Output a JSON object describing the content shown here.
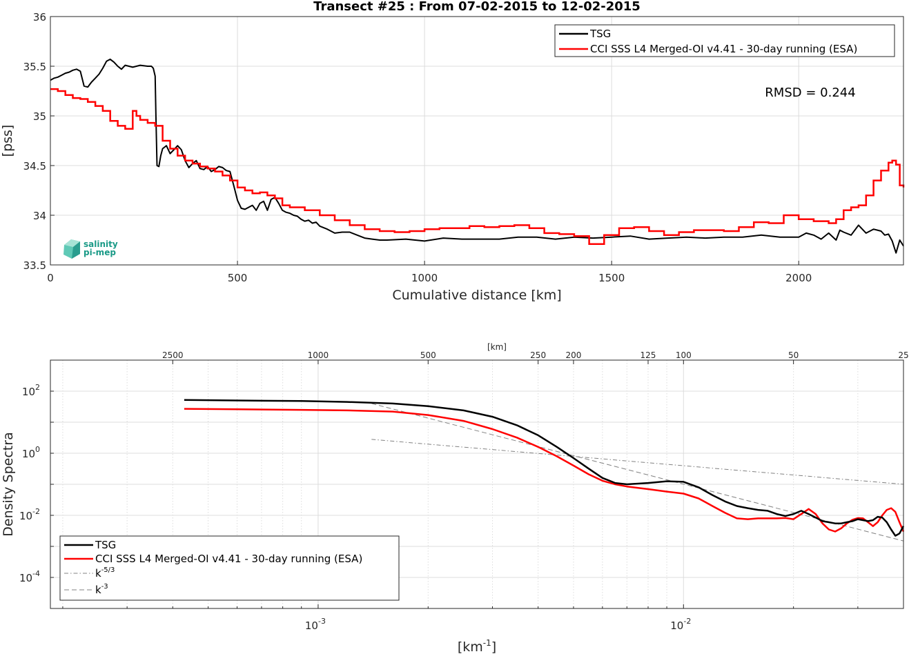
{
  "colors": {
    "tsg": "#000000",
    "cci": "#ff0000",
    "ref_k53": "#808080",
    "ref_k3": "#808080",
    "grid": "#dcdcdc",
    "logo": "#1a9a87"
  },
  "logo": {
    "line1": "salinity",
    "line2": "pi-mep"
  },
  "chart_data": [
    {
      "type": "line",
      "title": "Transect #25 : From 07-02-2015 to 12-02-2015",
      "xlabel": "Cumulative distance [km]",
      "ylabel": "[pss]",
      "xlim": [
        0,
        2280
      ],
      "ylim": [
        33.5,
        36
      ],
      "xticks": [
        0,
        500,
        1000,
        1500,
        2000
      ],
      "yticks": [
        33.5,
        34,
        34.5,
        35,
        35.5,
        36
      ],
      "grid": true,
      "legend_position": "top-right",
      "annotation": "RMSD = 0.244",
      "series": [
        {
          "name": "TSG",
          "x": [
            0,
            10,
            20,
            30,
            40,
            50,
            60,
            70,
            80,
            90,
            100,
            110,
            120,
            130,
            140,
            150,
            160,
            170,
            180,
            190,
            200,
            220,
            240,
            260,
            270,
            275,
            280,
            282,
            285,
            290,
            295,
            300,
            310,
            320,
            330,
            340,
            350,
            360,
            370,
            380,
            390,
            400,
            410,
            420,
            430,
            440,
            450,
            460,
            470,
            480,
            490,
            500,
            510,
            520,
            530,
            540,
            550,
            560,
            570,
            580,
            590,
            600,
            610,
            620,
            630,
            640,
            650,
            660,
            670,
            680,
            690,
            700,
            710,
            720,
            740,
            760,
            780,
            800,
            820,
            840,
            860,
            880,
            900,
            950,
            1000,
            1050,
            1100,
            1150,
            1200,
            1250,
            1300,
            1350,
            1400,
            1450,
            1500,
            1550,
            1600,
            1650,
            1700,
            1750,
            1800,
            1850,
            1900,
            1950,
            2000,
            2020,
            2040,
            2060,
            2080,
            2100,
            2110,
            2120,
            2140,
            2160,
            2180,
            2200,
            2220,
            2230,
            2240,
            2250,
            2260,
            2270,
            2280
          ],
          "y": [
            35.36,
            35.38,
            35.39,
            35.41,
            35.43,
            35.44,
            35.46,
            35.47,
            35.45,
            35.3,
            35.29,
            35.34,
            35.38,
            35.42,
            35.48,
            35.55,
            35.57,
            35.54,
            35.5,
            35.47,
            35.51,
            35.49,
            35.51,
            35.5,
            35.5,
            35.48,
            35.4,
            35.0,
            34.5,
            34.49,
            34.6,
            34.67,
            34.7,
            34.62,
            34.66,
            34.7,
            34.66,
            34.55,
            34.48,
            34.52,
            34.55,
            34.47,
            34.46,
            34.49,
            34.44,
            34.46,
            34.49,
            34.48,
            34.45,
            34.44,
            34.3,
            34.15,
            34.07,
            34.06,
            34.08,
            34.1,
            34.05,
            34.12,
            34.14,
            34.05,
            34.16,
            34.18,
            34.12,
            34.05,
            34.03,
            34.02,
            34.0,
            33.99,
            33.96,
            33.94,
            33.95,
            33.92,
            33.93,
            33.89,
            33.86,
            33.82,
            33.83,
            33.83,
            33.8,
            33.77,
            33.76,
            33.75,
            33.75,
            33.76,
            33.74,
            33.77,
            33.76,
            33.76,
            33.76,
            33.78,
            33.78,
            33.76,
            33.78,
            33.77,
            33.78,
            33.79,
            33.76,
            33.77,
            33.78,
            33.77,
            33.78,
            33.78,
            33.8,
            33.78,
            33.78,
            33.82,
            33.8,
            33.76,
            33.82,
            33.75,
            33.85,
            33.83,
            33.8,
            33.9,
            33.82,
            33.86,
            33.84,
            33.8,
            33.81,
            33.74,
            33.62,
            33.75,
            33.69
          ]
        },
        {
          "name": "CCI SSS L4 Merged-OI v4.41 - 30-day running (ESA)",
          "x": [
            0,
            20,
            40,
            60,
            80,
            100,
            120,
            140,
            160,
            180,
            200,
            220,
            230,
            240,
            260,
            280,
            300,
            320,
            340,
            360,
            380,
            400,
            420,
            440,
            460,
            480,
            500,
            520,
            540,
            560,
            580,
            600,
            620,
            640,
            680,
            720,
            760,
            800,
            840,
            880,
            920,
            960,
            1000,
            1040,
            1080,
            1120,
            1160,
            1200,
            1240,
            1280,
            1320,
            1360,
            1400,
            1440,
            1480,
            1520,
            1560,
            1600,
            1640,
            1680,
            1720,
            1760,
            1800,
            1840,
            1880,
            1920,
            1960,
            2000,
            2040,
            2080,
            2100,
            2120,
            2140,
            2160,
            2180,
            2200,
            2220,
            2240,
            2250,
            2260,
            2270,
            2280
          ],
          "y": [
            35.27,
            35.25,
            35.21,
            35.18,
            35.17,
            35.14,
            35.1,
            35.05,
            34.95,
            34.9,
            34.87,
            35.05,
            35.0,
            34.96,
            34.93,
            34.9,
            34.75,
            34.67,
            34.6,
            34.55,
            34.52,
            34.49,
            34.47,
            34.44,
            34.4,
            34.35,
            34.28,
            34.25,
            34.22,
            34.23,
            34.2,
            34.17,
            34.1,
            34.08,
            34.05,
            34.0,
            33.95,
            33.9,
            33.86,
            33.84,
            33.83,
            33.84,
            33.86,
            33.87,
            33.87,
            33.89,
            33.88,
            33.89,
            33.9,
            33.87,
            33.82,
            33.81,
            33.79,
            33.71,
            33.8,
            33.87,
            33.88,
            33.84,
            33.8,
            33.83,
            33.85,
            33.85,
            33.84,
            33.88,
            33.93,
            33.92,
            34.0,
            33.96,
            33.94,
            33.92,
            33.96,
            34.05,
            34.08,
            34.1,
            34.2,
            34.35,
            34.45,
            34.53,
            34.55,
            34.51,
            34.3,
            34.28
          ]
        }
      ]
    },
    {
      "type": "line",
      "xscale": "log",
      "yscale": "log",
      "xlabel": "[km-1]",
      "ylabel": "Density Spectra",
      "top_axis_label": "[km]",
      "xlim": [
        0.000185,
        0.04
      ],
      "ylim": [
        1e-05,
        1000
      ],
      "xticks": [
        0.001,
        0.01
      ],
      "xtick_labels": [
        {
          "base": "10",
          "exp": "-3"
        },
        {
          "base": "10",
          "exp": "-2"
        }
      ],
      "yticks": [
        0.0001,
        0.01,
        1,
        100
      ],
      "ytick_labels": [
        {
          "base": "10",
          "exp": "-4"
        },
        {
          "base": "10",
          "exp": "-2"
        },
        {
          "base": "10",
          "exp": "0"
        },
        {
          "base": "10",
          "exp": "2"
        }
      ],
      "top_ticks": [
        2500,
        1000,
        500,
        250,
        200,
        125,
        100,
        50,
        25
      ],
      "grid": true,
      "legend_position": "bottom-left",
      "series": [
        {
          "name": "TSG",
          "x": [
            0.00043,
            0.0006,
            0.0009,
            0.0012,
            0.0016,
            0.002,
            0.0025,
            0.003,
            0.0035,
            0.004,
            0.0045,
            0.005,
            0.0055,
            0.006,
            0.0065,
            0.007,
            0.008,
            0.009,
            0.01,
            0.011,
            0.012,
            0.013,
            0.014,
            0.015,
            0.016,
            0.017,
            0.018,
            0.019,
            0.02,
            0.021,
            0.022,
            0.023,
            0.024,
            0.025,
            0.026,
            0.027,
            0.028,
            0.029,
            0.03,
            0.031,
            0.032,
            0.033,
            0.034,
            0.035,
            0.036,
            0.037,
            0.038,
            0.039,
            0.04
          ],
          "y": [
            52,
            50,
            48,
            45,
            40,
            33,
            24,
            15,
            8.0,
            3.8,
            1.6,
            0.7,
            0.32,
            0.16,
            0.11,
            0.1,
            0.11,
            0.125,
            0.12,
            0.08,
            0.045,
            0.028,
            0.02,
            0.017,
            0.015,
            0.014,
            0.011,
            0.0095,
            0.011,
            0.014,
            0.011,
            0.0085,
            0.0065,
            0.006,
            0.0055,
            0.0055,
            0.006,
            0.0065,
            0.0075,
            0.007,
            0.0065,
            0.007,
            0.009,
            0.0085,
            0.006,
            0.0035,
            0.0022,
            0.0026,
            0.0045
          ]
        },
        {
          "name": "CCI SSS L4 Merged-OI v4.41 - 30-day running (ESA)",
          "x": [
            0.00043,
            0.0006,
            0.0009,
            0.0012,
            0.0016,
            0.002,
            0.0025,
            0.003,
            0.0035,
            0.004,
            0.0045,
            0.005,
            0.0055,
            0.006,
            0.0065,
            0.007,
            0.008,
            0.009,
            0.01,
            0.011,
            0.012,
            0.013,
            0.014,
            0.015,
            0.016,
            0.017,
            0.018,
            0.019,
            0.02,
            0.021,
            0.022,
            0.023,
            0.024,
            0.025,
            0.026,
            0.027,
            0.028,
            0.029,
            0.03,
            0.031,
            0.032,
            0.033,
            0.034,
            0.035,
            0.036,
            0.037,
            0.038,
            0.039,
            0.04
          ],
          "y": [
            27,
            26,
            25,
            24,
            22,
            17,
            11,
            6.0,
            3.2,
            1.6,
            0.8,
            0.4,
            0.21,
            0.13,
            0.1,
            0.085,
            0.07,
            0.058,
            0.05,
            0.035,
            0.02,
            0.012,
            0.008,
            0.0075,
            0.008,
            0.008,
            0.008,
            0.0082,
            0.0075,
            0.011,
            0.016,
            0.011,
            0.0055,
            0.0035,
            0.003,
            0.0038,
            0.0055,
            0.0072,
            0.0082,
            0.008,
            0.006,
            0.0045,
            0.006,
            0.01,
            0.015,
            0.017,
            0.013,
            0.006,
            0.003
          ]
        },
        {
          "name": "k-5/3",
          "x": [
            0.0014,
            0.04
          ],
          "y": [
            2.8,
            0.1
          ]
        },
        {
          "name": "k-3",
          "x": [
            0.0014,
            0.04
          ],
          "y": [
            40,
            0.0015
          ]
        }
      ],
      "legend": [
        {
          "label": "TSG"
        },
        {
          "label": "CCI SSS L4 Merged-OI v4.41 - 30-day running (ESA)"
        },
        {
          "label": "k",
          "sup": "-5/3"
        },
        {
          "label": "k",
          "sup": "-3"
        }
      ]
    }
  ]
}
